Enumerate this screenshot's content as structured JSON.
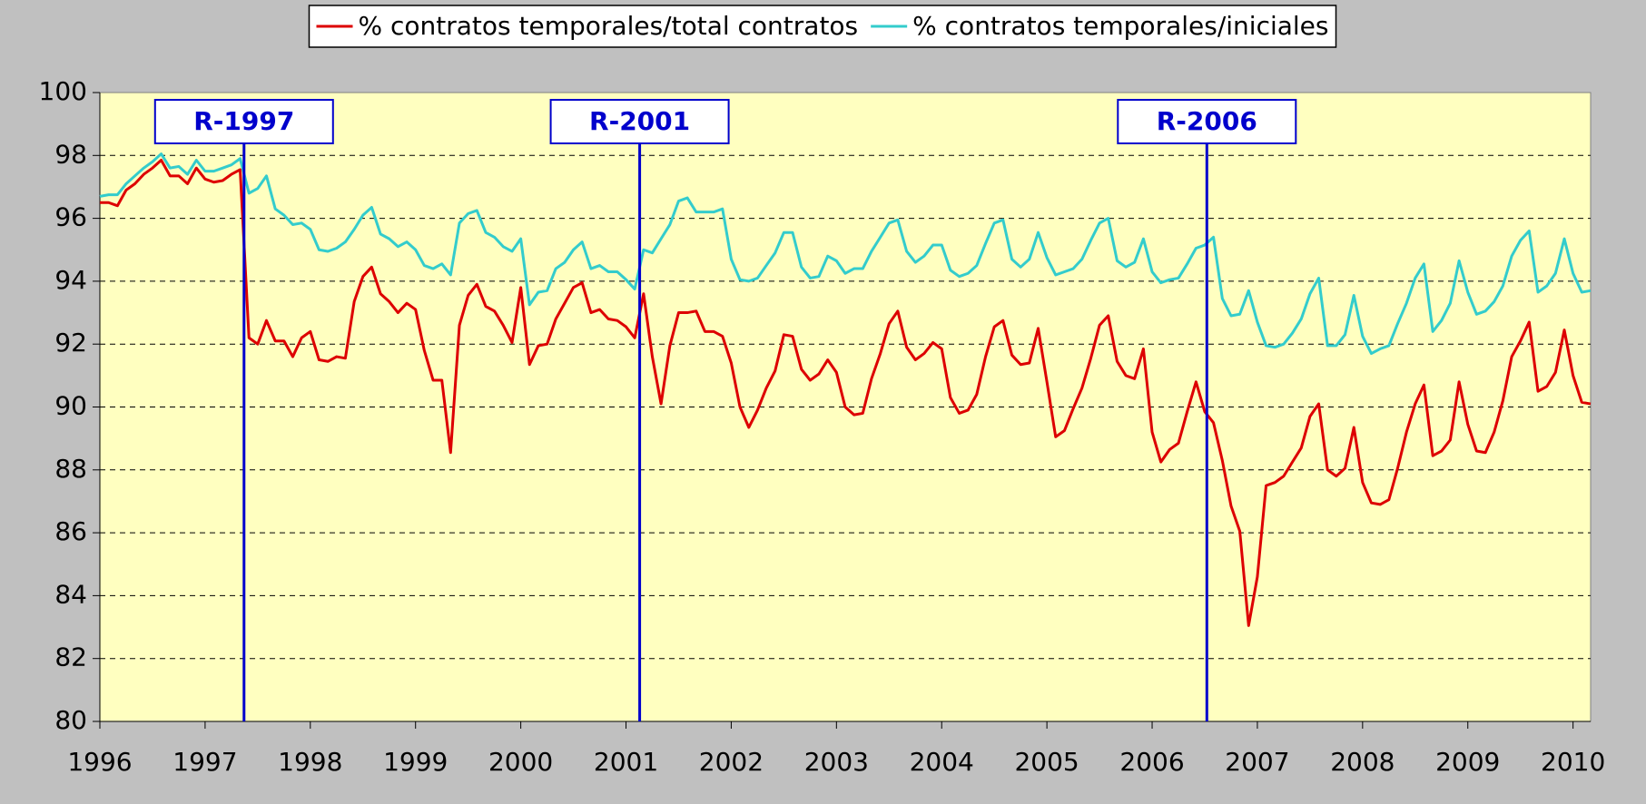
{
  "chart_data": {
    "type": "line",
    "x": [
      1996,
      1996.083,
      1996.167,
      1996.25,
      1996.333,
      1996.417,
      1996.5,
      1996.583,
      1996.667,
      1996.75,
      1996.833,
      1996.917,
      1997,
      1997.083,
      1997.167,
      1997.25,
      1997.333,
      1997.417,
      1997.5,
      1997.583,
      1997.667,
      1997.75,
      1997.833,
      1997.917,
      1998,
      1998.083,
      1998.167,
      1998.25,
      1998.333,
      1998.417,
      1998.5,
      1998.583,
      1998.667,
      1998.75,
      1998.833,
      1998.917,
      1999,
      1999.083,
      1999.167,
      1999.25,
      1999.333,
      1999.417,
      1999.5,
      1999.583,
      1999.667,
      1999.75,
      1999.833,
      1999.917,
      2000,
      2000.083,
      2000.167,
      2000.25,
      2000.333,
      2000.417,
      2000.5,
      2000.583,
      2000.667,
      2000.75,
      2000.833,
      2000.917,
      2001,
      2001.083,
      2001.167,
      2001.25,
      2001.333,
      2001.417,
      2001.5,
      2001.583,
      2001.667,
      2001.75,
      2001.833,
      2001.917,
      2002,
      2002.083,
      2002.167,
      2002.25,
      2002.333,
      2002.417,
      2002.5,
      2002.583,
      2002.667,
      2002.75,
      2002.833,
      2002.917,
      2003,
      2003.083,
      2003.167,
      2003.25,
      2003.333,
      2003.417,
      2003.5,
      2003.583,
      2003.667,
      2003.75,
      2003.833,
      2003.917,
      2004,
      2004.083,
      2004.167,
      2004.25,
      2004.333,
      2004.417,
      2004.5,
      2004.583,
      2004.667,
      2004.75,
      2004.833,
      2004.917,
      2005,
      2005.083,
      2005.167,
      2005.25,
      2005.333,
      2005.417,
      2005.5,
      2005.583,
      2005.667,
      2005.75,
      2005.833,
      2005.917,
      2006,
      2006.083,
      2006.167,
      2006.25,
      2006.333,
      2006.417,
      2006.5,
      2006.583,
      2006.667,
      2006.75,
      2006.833,
      2006.917,
      2007,
      2007.083,
      2007.167,
      2007.25,
      2007.333,
      2007.417,
      2007.5,
      2007.583,
      2007.667,
      2007.75,
      2007.833,
      2007.917,
      2008,
      2008.083,
      2008.167,
      2008.25,
      2008.333,
      2008.417,
      2008.5,
      2008.583,
      2008.667,
      2008.75,
      2008.833,
      2008.917,
      2009,
      2009.083,
      2009.167,
      2009.25,
      2009.333,
      2009.417,
      2009.5,
      2009.583,
      2009.667,
      2009.75,
      2009.833,
      2009.917,
      2010,
      2010.083,
      2010.167
    ],
    "series": [
      {
        "name": "% contratos temporales/total contratos",
        "color": "#dd0000",
        "values": [
          96.5,
          96.5,
          96.4,
          96.9,
          97.1,
          97.4,
          97.6,
          97.85,
          97.35,
          97.35,
          97.1,
          97.6,
          97.25,
          97.15,
          97.2,
          97.4,
          97.55,
          92.2,
          92.0,
          92.75,
          92.1,
          92.1,
          91.6,
          92.2,
          92.4,
          91.5,
          91.45,
          91.6,
          91.55,
          93.35,
          94.15,
          94.45,
          93.6,
          93.35,
          93.0,
          93.3,
          93.1,
          91.8,
          90.85,
          90.85,
          88.55,
          92.6,
          93.55,
          93.9,
          93.2,
          93.05,
          92.6,
          92.05,
          93.8,
          91.35,
          91.95,
          92.0,
          92.8,
          93.3,
          93.8,
          93.95,
          93.0,
          93.1,
          92.8,
          92.75,
          92.55,
          92.2,
          93.6,
          91.6,
          90.1,
          91.95,
          93.0,
          93.0,
          93.05,
          92.4,
          92.4,
          92.25,
          91.4,
          90.0,
          89.35,
          89.9,
          90.6,
          91.15,
          92.3,
          92.25,
          91.2,
          90.85,
          91.05,
          91.5,
          91.1,
          90.0,
          89.75,
          89.8,
          90.9,
          91.7,
          92.65,
          93.05,
          91.9,
          91.5,
          91.7,
          92.05,
          91.85,
          90.3,
          89.8,
          89.9,
          90.4,
          91.6,
          92.55,
          92.75,
          91.65,
          91.35,
          91.4,
          92.5,
          90.8,
          89.05,
          89.25,
          89.95,
          90.6,
          91.55,
          92.6,
          92.9,
          91.45,
          91.0,
          90.9,
          91.85,
          89.2,
          88.25,
          88.65,
          88.85,
          89.85,
          90.8,
          89.85,
          89.5,
          88.3,
          86.85,
          86.05,
          83.05,
          84.6,
          87.5,
          87.6,
          87.8,
          88.25,
          88.7,
          89.7,
          90.1,
          88.0,
          87.8,
          88.05,
          89.35,
          87.6,
          86.95,
          86.9,
          87.05,
          88.05,
          89.2,
          90.1,
          90.7,
          88.45,
          88.6,
          88.95,
          90.8,
          89.45,
          88.6,
          88.55,
          89.2,
          90.2,
          91.6,
          92.1,
          92.7,
          90.5,
          90.65,
          91.1,
          92.45,
          91.0,
          90.15,
          90.1
        ]
      },
      {
        "name": "% contratos temporales/iniciales",
        "color": "#33cccc",
        "values": [
          96.7,
          96.75,
          96.75,
          97.1,
          97.35,
          97.6,
          97.8,
          98.05,
          97.6,
          97.65,
          97.4,
          97.85,
          97.5,
          97.5,
          97.6,
          97.7,
          97.9,
          96.8,
          96.95,
          97.35,
          96.3,
          96.1,
          95.8,
          95.85,
          95.65,
          95.0,
          94.95,
          95.05,
          95.25,
          95.65,
          96.1,
          96.35,
          95.5,
          95.35,
          95.1,
          95.25,
          95.0,
          94.5,
          94.4,
          94.55,
          94.2,
          95.85,
          96.15,
          96.25,
          95.55,
          95.4,
          95.1,
          94.95,
          95.35,
          93.25,
          93.65,
          93.7,
          94.4,
          94.6,
          95.0,
          95.25,
          94.4,
          94.5,
          94.3,
          94.3,
          94.05,
          93.75,
          95.0,
          94.9,
          95.35,
          95.8,
          96.55,
          96.65,
          96.2,
          96.2,
          96.2,
          96.3,
          94.7,
          94.05,
          94.0,
          94.1,
          94.5,
          94.9,
          95.55,
          95.55,
          94.45,
          94.1,
          94.15,
          94.8,
          94.65,
          94.25,
          94.4,
          94.4,
          94.95,
          95.4,
          95.85,
          95.95,
          94.95,
          94.6,
          94.8,
          95.15,
          95.15,
          94.35,
          94.15,
          94.25,
          94.5,
          95.2,
          95.85,
          95.95,
          94.7,
          94.45,
          94.7,
          95.55,
          94.75,
          94.2,
          94.3,
          94.4,
          94.7,
          95.3,
          95.85,
          96.0,
          94.65,
          94.45,
          94.6,
          95.35,
          94.3,
          93.95,
          94.05,
          94.1,
          94.55,
          95.05,
          95.15,
          95.4,
          93.45,
          92.9,
          92.95,
          93.7,
          92.7,
          91.95,
          91.9,
          92.0,
          92.35,
          92.8,
          93.6,
          94.1,
          91.95,
          91.95,
          92.3,
          93.55,
          92.25,
          91.7,
          91.85,
          91.95,
          92.65,
          93.3,
          94.1,
          94.55,
          92.4,
          92.75,
          93.3,
          94.65,
          93.65,
          92.95,
          93.05,
          93.35,
          93.85,
          94.8,
          95.3,
          95.6,
          93.65,
          93.85,
          94.25,
          95.35,
          94.25,
          93.65,
          93.7
        ]
      }
    ],
    "xlim": [
      1996,
      2010.167
    ],
    "xticks": [
      1996,
      1997,
      1998,
      1999,
      2000,
      2001,
      2002,
      2003,
      2004,
      2005,
      2006,
      2007,
      2008,
      2009,
      2010
    ],
    "ylim": [
      80,
      100
    ],
    "yticks": [
      80,
      82,
      84,
      86,
      88,
      90,
      92,
      94,
      96,
      98,
      100
    ],
    "grid": true,
    "legend": "top",
    "annotations": [
      {
        "text": "R-1997",
        "x": 1997.37
      },
      {
        "text": "R-2001",
        "x": 2001.13
      },
      {
        "text": "R-2006",
        "x": 2006.52
      }
    ]
  }
}
